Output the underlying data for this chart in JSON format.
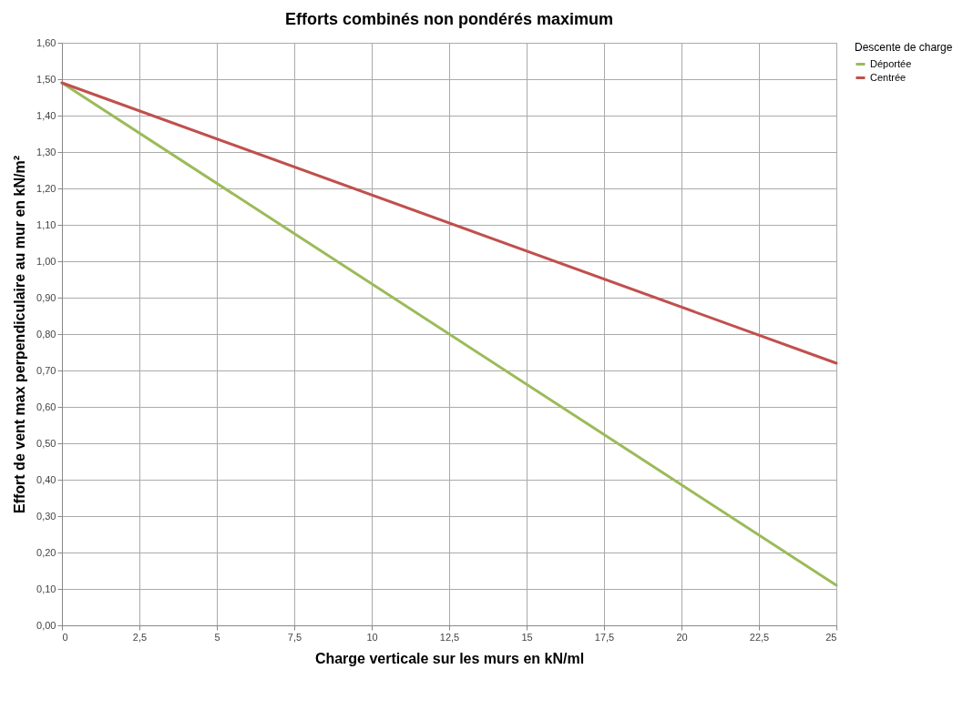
{
  "chart_data": {
    "type": "line",
    "title": "Efforts combinés non pondérés maximum",
    "xlabel": "Charge verticale sur les murs en kN/ml",
    "ylabel": "Effort de vent max perpendiculaire au mur en kN/m²",
    "legend_title": "Descente de charge",
    "x": [
      0,
      25
    ],
    "series": [
      {
        "name": "Déportée",
        "color": "#9bbb59",
        "values": [
          1.49,
          0.11
        ]
      },
      {
        "name": "Centrée",
        "color": "#c0504d",
        "values": [
          1.49,
          0.72
        ]
      }
    ],
    "xlim": [
      0,
      25
    ],
    "xticks": [
      0,
      {
        "value": 2.5,
        "label": "2,5"
      },
      5,
      {
        "value": 7.5,
        "label": "7,5"
      },
      10,
      {
        "value": 12.5,
        "label": "12,5"
      },
      15,
      {
        "value": 17.5,
        "label": "17,5"
      },
      20,
      {
        "value": 22.5,
        "label": "22,5"
      },
      25
    ],
    "ylim": [
      0,
      1.6
    ],
    "yticks": [
      {
        "value": 0,
        "label": "0,00"
      },
      {
        "value": 0.1,
        "label": "0,10"
      },
      {
        "value": 0.2,
        "label": "0,20"
      },
      {
        "value": 0.3,
        "label": "0,30"
      },
      {
        "value": 0.4,
        "label": "0,40"
      },
      {
        "value": 0.5,
        "label": "0,50"
      },
      {
        "value": 0.6,
        "label": "0,60"
      },
      {
        "value": 0.7,
        "label": "0,70"
      },
      {
        "value": 0.8,
        "label": "0,80"
      },
      {
        "value": 0.9,
        "label": "0,90"
      },
      {
        "value": 1.0,
        "label": "1,00"
      },
      {
        "value": 1.1,
        "label": "1,10"
      },
      {
        "value": 1.2,
        "label": "1,20"
      },
      {
        "value": 1.3,
        "label": "1,30"
      },
      {
        "value": 1.4,
        "label": "1,40"
      },
      {
        "value": 1.5,
        "label": "1,50"
      },
      {
        "value": 1.6,
        "label": "1,60"
      }
    ],
    "grid": true,
    "legend": "right",
    "marker": "none",
    "line_style": "solid"
  }
}
